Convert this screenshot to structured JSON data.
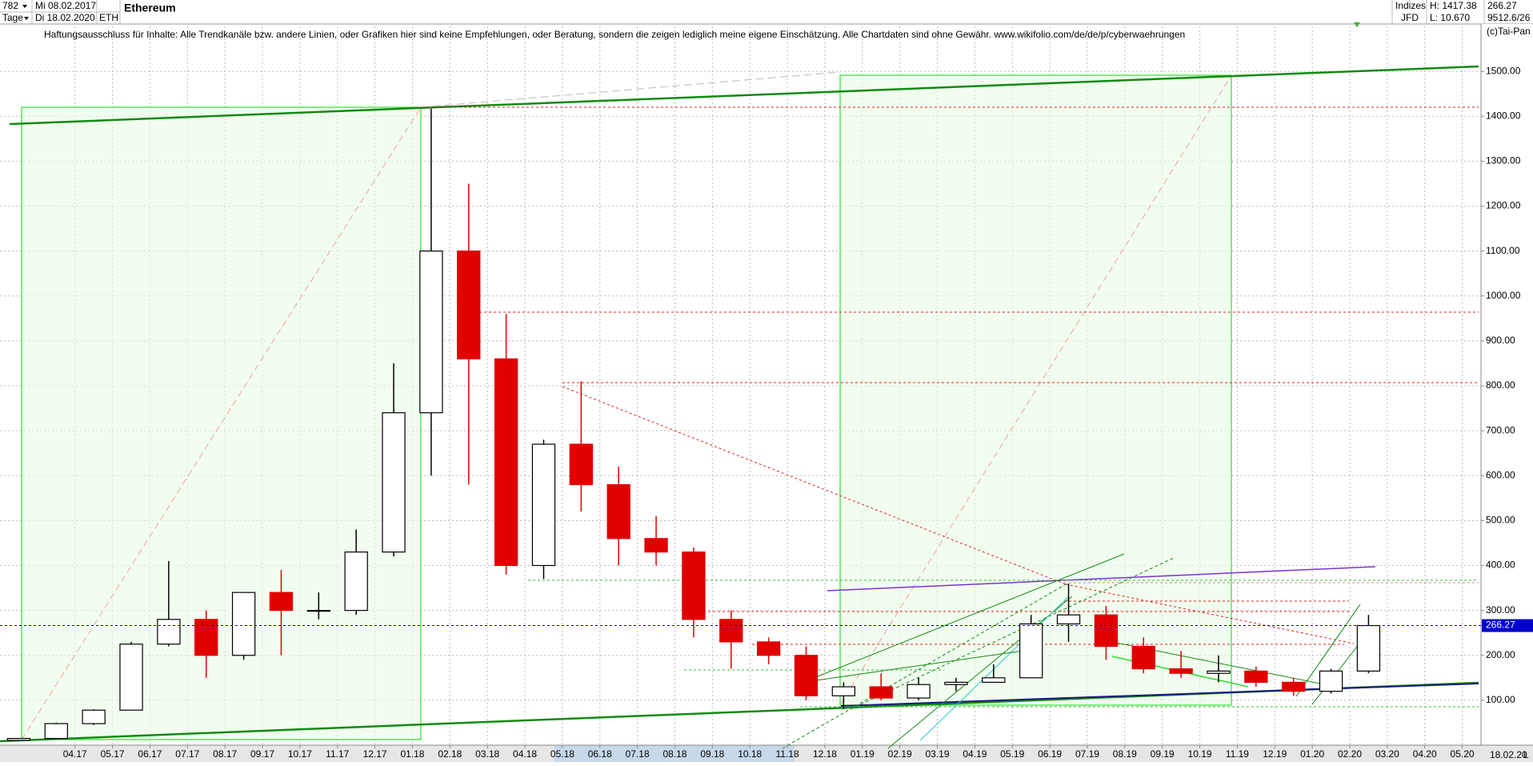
{
  "header": {
    "count": "782",
    "period": "Tage",
    "from": "Mi 08.02.2017",
    "to": "Di 18.02.2020",
    "symbol": "ETH",
    "group": "Indizes",
    "broker": "JFD",
    "high": "H: 1417.38",
    "low": "L: 10.670",
    "last": "266.27",
    "extra": "9512.6/26",
    "copyright": "(c)Tai-Pan",
    "disclaimer": "Haftungsausschluss für Inhalte: Alle Trendkanäle bzw. andere Linien, oder Grafiken hier sind keine Empfehlungen, oder Beratung, sondern die zeigen lediglich meine eigene Einschätzung. Alle Chartdaten sind ohne Gewähr.  www.wikifolio.com/de/de/p/cyberwaehrungen",
    "date_label": "18.02.20",
    "scale_label": "L"
  },
  "chart_data": {
    "type": "candlestick",
    "title": "Ethereum",
    "open": [
      10.7,
      15,
      48,
      78,
      225,
      280,
      200,
      340,
      300,
      300,
      430,
      740,
      1100,
      860,
      400,
      670,
      580,
      460,
      430,
      280,
      230,
      200,
      110,
      130,
      105,
      135,
      140,
      150,
      270,
      290,
      220,
      170,
      160,
      165,
      140,
      120,
      165
    ],
    "high": [
      15,
      50,
      80,
      230,
      410,
      300,
      340,
      390,
      340,
      480,
      850,
      1417,
      1250,
      960,
      680,
      810,
      620,
      510,
      440,
      300,
      240,
      220,
      140,
      160,
      150,
      150,
      180,
      290,
      360,
      310,
      240,
      210,
      200,
      175,
      150,
      170,
      290
    ],
    "low": [
      10.7,
      15,
      45,
      78,
      220,
      150,
      190,
      200,
      280,
      290,
      420,
      600,
      580,
      380,
      370,
      520,
      400,
      400,
      240,
      170,
      180,
      100,
      80,
      100,
      100,
      120,
      140,
      150,
      230,
      190,
      160,
      150,
      140,
      130,
      110,
      115,
      160
    ],
    "close": [
      15,
      48,
      78,
      225,
      280,
      200,
      340,
      300,
      300,
      430,
      740,
      1100,
      860,
      400,
      670,
      580,
      460,
      430,
      280,
      230,
      200,
      110,
      130,
      105,
      135,
      140,
      150,
      270,
      290,
      220,
      170,
      160,
      165,
      140,
      120,
      165,
      266.27
    ],
    "up_color": "#000000",
    "down_color": "#e00000",
    "xlim": [
      0,
      39.5
    ],
    "xticks": [
      {
        "value": 2,
        "label": "04.17"
      },
      {
        "value": 3,
        "label": "05.17"
      },
      {
        "value": 4,
        "label": "06.17"
      },
      {
        "value": 5,
        "label": "07.17"
      },
      {
        "value": 6,
        "label": "08.17"
      },
      {
        "value": 7,
        "label": "09.17"
      },
      {
        "value": 8,
        "label": "10.17"
      },
      {
        "value": 9,
        "label": "11.17"
      },
      {
        "value": 10,
        "label": "12.17"
      },
      {
        "value": 11,
        "label": "01.18"
      },
      {
        "value": 12,
        "label": "02.18"
      },
      {
        "value": 13,
        "label": "03.18"
      },
      {
        "value": 14,
        "label": "04.18"
      },
      {
        "value": 15,
        "label": "05.18"
      },
      {
        "value": 16,
        "label": "06.18"
      },
      {
        "value": 17,
        "label": "07.18"
      },
      {
        "value": 18,
        "label": "08.18"
      },
      {
        "value": 19,
        "label": "09.18"
      },
      {
        "value": 20,
        "label": "10.18"
      },
      {
        "value": 21,
        "label": "11.18"
      },
      {
        "value": 22,
        "label": "12.18"
      },
      {
        "value": 23,
        "label": "01.19"
      },
      {
        "value": 24,
        "label": "02.19"
      },
      {
        "value": 25,
        "label": "03.19"
      },
      {
        "value": 26,
        "label": "04.19"
      },
      {
        "value": 27,
        "label": "05.19"
      },
      {
        "value": 28,
        "label": "06.19"
      },
      {
        "value": 29,
        "label": "07.19"
      },
      {
        "value": 30,
        "label": "08.19"
      },
      {
        "value": 31,
        "label": "09.19"
      },
      {
        "value": 32,
        "label": "10.19"
      },
      {
        "value": 33,
        "label": "11.19"
      },
      {
        "value": 34,
        "label": "12.19"
      },
      {
        "value": 35,
        "label": "01.20"
      },
      {
        "value": 36,
        "label": "02.20"
      },
      {
        "value": 37,
        "label": "03.20"
      },
      {
        "value": 38,
        "label": "04.20"
      },
      {
        "value": 39,
        "label": "05.20"
      }
    ],
    "ylim": [
      0,
      1600
    ],
    "yticks": [
      {
        "value": 100,
        "label": "100.00"
      },
      {
        "value": 200,
        "label": "200.00"
      },
      {
        "value": 300,
        "label": "300.00"
      },
      {
        "value": 400,
        "label": "400.00"
      },
      {
        "value": 500,
        "label": "500.00"
      },
      {
        "value": 600,
        "label": "600.00"
      },
      {
        "value": 700,
        "label": "700.00"
      },
      {
        "value": 800,
        "label": "800.00"
      },
      {
        "value": 900,
        "label": "900.00"
      },
      {
        "value": 1000,
        "label": "1000.00"
      },
      {
        "value": 1100,
        "label": "1100.00"
      },
      {
        "value": 1200,
        "label": "1200.00"
      },
      {
        "value": 1300,
        "label": "1300.00"
      },
      {
        "value": 1400,
        "label": "1400.00"
      },
      {
        "value": 1500,
        "label": "1500.00"
      }
    ],
    "grid": true,
    "current_price": 266.27,
    "current_price_color": "#0000cc"
  }
}
